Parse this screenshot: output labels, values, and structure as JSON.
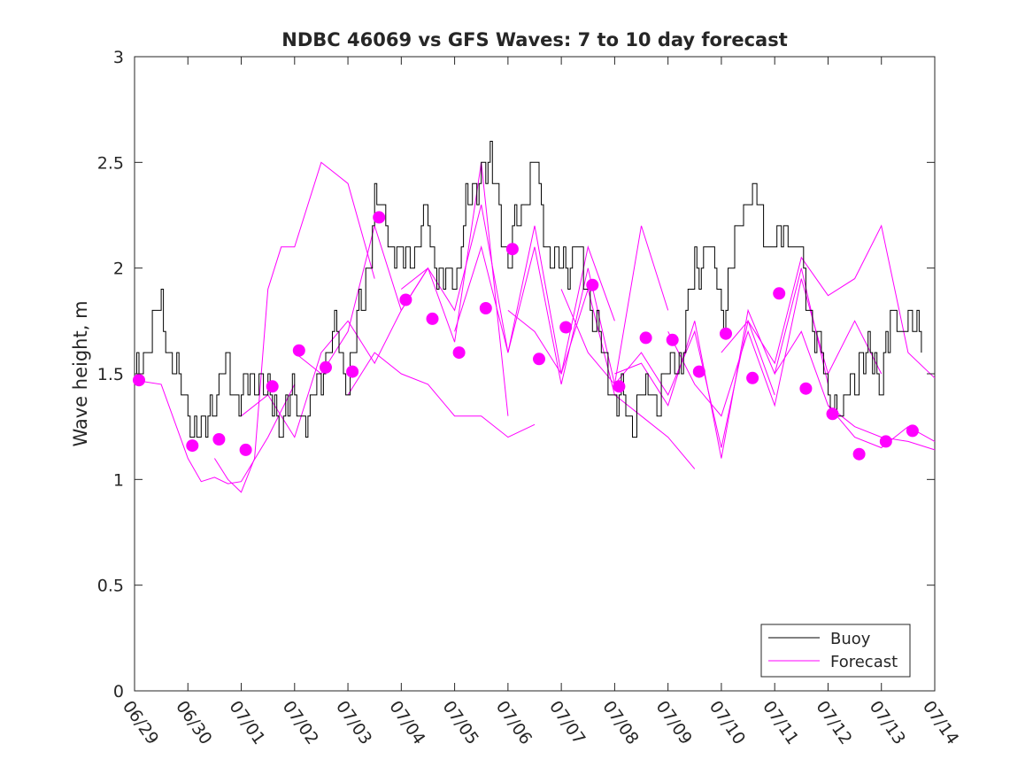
{
  "chart_data": {
    "type": "line",
    "title": "NDBC 46069 vs GFS Waves: 7 to 10 day forecast",
    "xlabel": "",
    "ylabel": "Wave height, m",
    "xlim": [
      "2023-06-29",
      "2023-07-14"
    ],
    "ylim": [
      0,
      3
    ],
    "x_tick_labels": [
      "06/29",
      "06/30",
      "07/01",
      "07/02",
      "07/03",
      "07/04",
      "07/05",
      "07/06",
      "07/07",
      "07/08",
      "07/09",
      "07/10",
      "07/11",
      "07/12",
      "07/13",
      "07/14"
    ],
    "y_tick_labels": [
      "0",
      "0.5",
      "1",
      "1.5",
      "2",
      "2.5",
      "3"
    ],
    "y_ticks": [
      0,
      0.5,
      1,
      1.5,
      2,
      2.5,
      3
    ],
    "grid": false,
    "legend": {
      "position": "bottom-right",
      "entries": [
        "Buoy",
        "Forecast"
      ]
    },
    "colors": {
      "buoy": "#000000",
      "forecast": "#ff00ff",
      "axis": "#262626"
    },
    "series": [
      {
        "name": "Buoy",
        "style": "stepped-line",
        "x": [
          "2023-06-29 00:00",
          "2023-06-29 06:00",
          "2023-06-29 12:00",
          "2023-06-29 18:00",
          "2023-06-30 00:00",
          "2023-06-30 06:00",
          "2023-06-30 12:00",
          "2023-06-30 18:00",
          "2023-07-01 00:00",
          "2023-07-01 06:00",
          "2023-07-01 12:00",
          "2023-07-01 18:00",
          "2023-07-02 00:00",
          "2023-07-02 06:00",
          "2023-07-02 12:00",
          "2023-07-02 18:00",
          "2023-07-03 00:00",
          "2023-07-03 06:00",
          "2023-07-03 12:00",
          "2023-07-03 18:00",
          "2023-07-04 00:00",
          "2023-07-04 06:00",
          "2023-07-04 12:00",
          "2023-07-04 18:00",
          "2023-07-05 00:00",
          "2023-07-05 06:00",
          "2023-07-05 12:00",
          "2023-07-05 18:00",
          "2023-07-06 00:00",
          "2023-07-06 06:00",
          "2023-07-06 12:00",
          "2023-07-06 18:00",
          "2023-07-07 00:00",
          "2023-07-07 06:00",
          "2023-07-07 12:00",
          "2023-07-07 18:00",
          "2023-07-08 00:00",
          "2023-07-08 06:00",
          "2023-07-08 12:00",
          "2023-07-08 18:00",
          "2023-07-09 00:00",
          "2023-07-09 06:00",
          "2023-07-09 12:00",
          "2023-07-09 18:00",
          "2023-07-10 00:00",
          "2023-07-10 06:00",
          "2023-07-10 12:00",
          "2023-07-10 18:00",
          "2023-07-11 00:00",
          "2023-07-11 06:00",
          "2023-07-11 12:00",
          "2023-07-11 18:00",
          "2023-07-12 00:00",
          "2023-07-12 06:00",
          "2023-07-12 12:00",
          "2023-07-12 18:00",
          "2023-07-13 00:00",
          "2023-07-13 06:00",
          "2023-07-13 12:00"
        ],
        "values": [
          1.4,
          1.7,
          1.8,
          1.5,
          1.3,
          1.2,
          1.4,
          1.5,
          1.4,
          1.5,
          1.4,
          1.3,
          1.4,
          1.3,
          1.5,
          1.7,
          1.5,
          1.8,
          2.3,
          2.2,
          2.0,
          2.1,
          2.2,
          1.9,
          2.0,
          2.3,
          2.5,
          2.4,
          2.0,
          2.3,
          2.5,
          2.1,
          2.0,
          2.1,
          1.9,
          1.6,
          1.4,
          1.3,
          1.4,
          1.4,
          1.5,
          1.6,
          2.0,
          2.1,
          1.8,
          2.1,
          2.4,
          2.2,
          2.1,
          2.2,
          2.0,
          1.7,
          1.4,
          1.3,
          1.5,
          1.6,
          1.5,
          1.8,
          1.7
        ]
      },
      {
        "name": "Forecast",
        "style": "markers",
        "x": [
          "2023-06-29 02:00",
          "2023-06-30 02:00",
          "2023-06-30 14:00",
          "2023-07-01 02:00",
          "2023-07-01 14:00",
          "2023-07-02 02:00",
          "2023-07-02 14:00",
          "2023-07-03 02:00",
          "2023-07-03 14:00",
          "2023-07-04 02:00",
          "2023-07-04 14:00",
          "2023-07-05 02:00",
          "2023-07-05 14:00",
          "2023-07-06 02:00",
          "2023-07-06 14:00",
          "2023-07-07 02:00",
          "2023-07-07 14:00",
          "2023-07-08 02:00",
          "2023-07-08 14:00",
          "2023-07-09 02:00",
          "2023-07-09 14:00",
          "2023-07-10 02:00",
          "2023-07-10 14:00",
          "2023-07-11 02:00",
          "2023-07-11 14:00",
          "2023-07-12 02:00",
          "2023-07-12 14:00",
          "2023-07-13 02:00",
          "2023-07-13 14:00"
        ],
        "values": [
          1.47,
          1.16,
          1.19,
          1.14,
          1.44,
          1.61,
          1.53,
          1.51,
          2.24,
          1.85,
          1.76,
          1.6,
          1.81,
          2.09,
          1.57,
          1.72,
          1.92,
          1.44,
          1.67,
          1.66,
          1.51,
          1.69,
          1.48,
          1.88,
          1.43,
          1.31,
          1.12,
          1.18,
          1.23
        ]
      }
    ],
    "forecast_runs": [
      {
        "x": [
          "2023-06-29 00:00",
          "2023-06-29 12:00",
          "2023-06-30 00:00",
          "2023-06-30 06:00",
          "2023-06-30 12:00",
          "2023-06-30 18:00",
          "2023-07-01 00:00",
          "2023-07-01 12:00",
          "2023-07-02 00:00"
        ],
        "values": [
          1.47,
          1.45,
          1.1,
          0.99,
          1.01,
          0.98,
          0.99,
          1.2,
          1.45
        ]
      },
      {
        "x": [
          "2023-06-30 12:00",
          "2023-06-30 18:00",
          "2023-07-01 00:00",
          "2023-07-01 06:00",
          "2023-07-01 12:00",
          "2023-07-01 18:00",
          "2023-07-02 00:00",
          "2023-07-02 12:00",
          "2023-07-03 00:00",
          "2023-07-03 12:00"
        ],
        "values": [
          1.1,
          1.0,
          0.94,
          1.1,
          1.9,
          2.1,
          2.1,
          2.5,
          2.4,
          1.95
        ]
      },
      {
        "x": [
          "2023-07-01 00:00",
          "2023-07-01 12:00",
          "2023-07-02 00:00",
          "2023-07-02 12:00",
          "2023-07-03 00:00",
          "2023-07-03 12:00",
          "2023-07-04 00:00",
          "2023-07-04 12:00"
        ],
        "values": [
          1.3,
          1.4,
          1.2,
          1.6,
          1.75,
          1.55,
          1.8,
          2.0
        ]
      },
      {
        "x": [
          "2023-07-02 00:00",
          "2023-07-02 12:00",
          "2023-07-03 00:00",
          "2023-07-03 12:00",
          "2023-07-04 00:00",
          "2023-07-04 12:00",
          "2023-07-05 00:00",
          "2023-07-05 12:00",
          "2023-07-06 00:00"
        ],
        "values": [
          1.6,
          1.5,
          1.7,
          2.2,
          1.8,
          2.0,
          1.65,
          2.5,
          1.3
        ]
      },
      {
        "x": [
          "2023-07-03 00:00",
          "2023-07-03 12:00",
          "2023-07-04 00:00",
          "2023-07-04 12:00",
          "2023-07-05 00:00",
          "2023-07-05 12:00",
          "2023-07-06 00:00",
          "2023-07-06 12:00"
        ],
        "values": [
          1.4,
          1.6,
          1.5,
          1.45,
          1.3,
          1.3,
          1.2,
          1.26
        ]
      },
      {
        "x": [
          "2023-07-04 00:00",
          "2023-07-04 12:00",
          "2023-07-05 00:00",
          "2023-07-05 12:00",
          "2023-07-06 00:00",
          "2023-07-06 12:00",
          "2023-07-07 00:00",
          "2023-07-07 12:00",
          "2023-07-08 00:00"
        ],
        "values": [
          1.9,
          2.0,
          1.8,
          2.3,
          1.6,
          2.2,
          1.5,
          2.1,
          1.75
        ]
      },
      {
        "x": [
          "2023-07-05 00:00",
          "2023-07-05 12:00",
          "2023-07-06 00:00",
          "2023-07-06 12:00",
          "2023-07-07 00:00",
          "2023-07-07 12:00",
          "2023-07-08 00:00",
          "2023-07-08 12:00",
          "2023-07-09 00:00"
        ],
        "values": [
          1.7,
          2.1,
          1.6,
          2.1,
          1.45,
          2.0,
          1.45,
          2.2,
          1.8
        ]
      },
      {
        "x": [
          "2023-07-06 00:00",
          "2023-07-06 12:00",
          "2023-07-07 00:00",
          "2023-07-07 12:00",
          "2023-07-08 00:00",
          "2023-07-08 12:00",
          "2023-07-09 00:00",
          "2023-07-09 12:00"
        ],
        "values": [
          1.8,
          1.7,
          1.5,
          1.9,
          1.4,
          1.3,
          1.2,
          1.05
        ]
      },
      {
        "x": [
          "2023-07-07 00:00",
          "2023-07-07 12:00",
          "2023-07-08 00:00",
          "2023-07-08 12:00",
          "2023-07-09 00:00",
          "2023-07-09 12:00",
          "2023-07-10 00:00",
          "2023-07-10 12:00",
          "2023-07-11 00:00"
        ],
        "values": [
          1.9,
          1.6,
          1.45,
          1.6,
          1.4,
          1.7,
          1.15,
          1.75,
          1.4
        ]
      },
      {
        "x": [
          "2023-07-08 00:00",
          "2023-07-08 12:00",
          "2023-07-09 00:00",
          "2023-07-09 12:00",
          "2023-07-10 00:00",
          "2023-07-10 12:00",
          "2023-07-11 00:00",
          "2023-07-11 12:00",
          "2023-07-12 00:00"
        ],
        "values": [
          1.5,
          1.55,
          1.35,
          1.75,
          1.1,
          1.8,
          1.5,
          2.0,
          1.45
        ]
      },
      {
        "x": [
          "2023-07-09 00:00",
          "2023-07-09 12:00",
          "2023-07-10 00:00",
          "2023-07-10 12:00",
          "2023-07-11 00:00",
          "2023-07-11 12:00",
          "2023-07-12 00:00",
          "2023-07-12 12:00",
          "2023-07-13 00:00"
        ],
        "values": [
          1.7,
          1.45,
          1.3,
          1.7,
          1.35,
          1.95,
          1.5,
          1.75,
          1.5
        ]
      },
      {
        "x": [
          "2023-07-10 00:00",
          "2023-07-10 12:00",
          "2023-07-11 00:00",
          "2023-07-11 12:00",
          "2023-07-12 00:00",
          "2023-07-12 12:00",
          "2023-07-13 00:00",
          "2023-07-13 12:00",
          "2023-07-14 00:00"
        ],
        "values": [
          1.6,
          1.75,
          1.55,
          2.05,
          1.87,
          1.95,
          2.2,
          1.6,
          1.48
        ]
      },
      {
        "x": [
          "2023-07-11 00:00",
          "2023-07-11 12:00",
          "2023-07-12 00:00",
          "2023-07-12 12:00",
          "2023-07-13 00:00",
          "2023-07-13 12:00",
          "2023-07-14 00:00"
        ],
        "values": [
          1.5,
          1.7,
          1.35,
          1.25,
          1.2,
          1.18,
          1.14
        ]
      },
      {
        "x": [
          "2023-07-12 00:00",
          "2023-07-12 12:00",
          "2023-07-13 00:00",
          "2023-07-13 12:00",
          "2023-07-14 00:00"
        ],
        "values": [
          1.35,
          1.2,
          1.15,
          1.25,
          1.18
        ]
      }
    ]
  }
}
